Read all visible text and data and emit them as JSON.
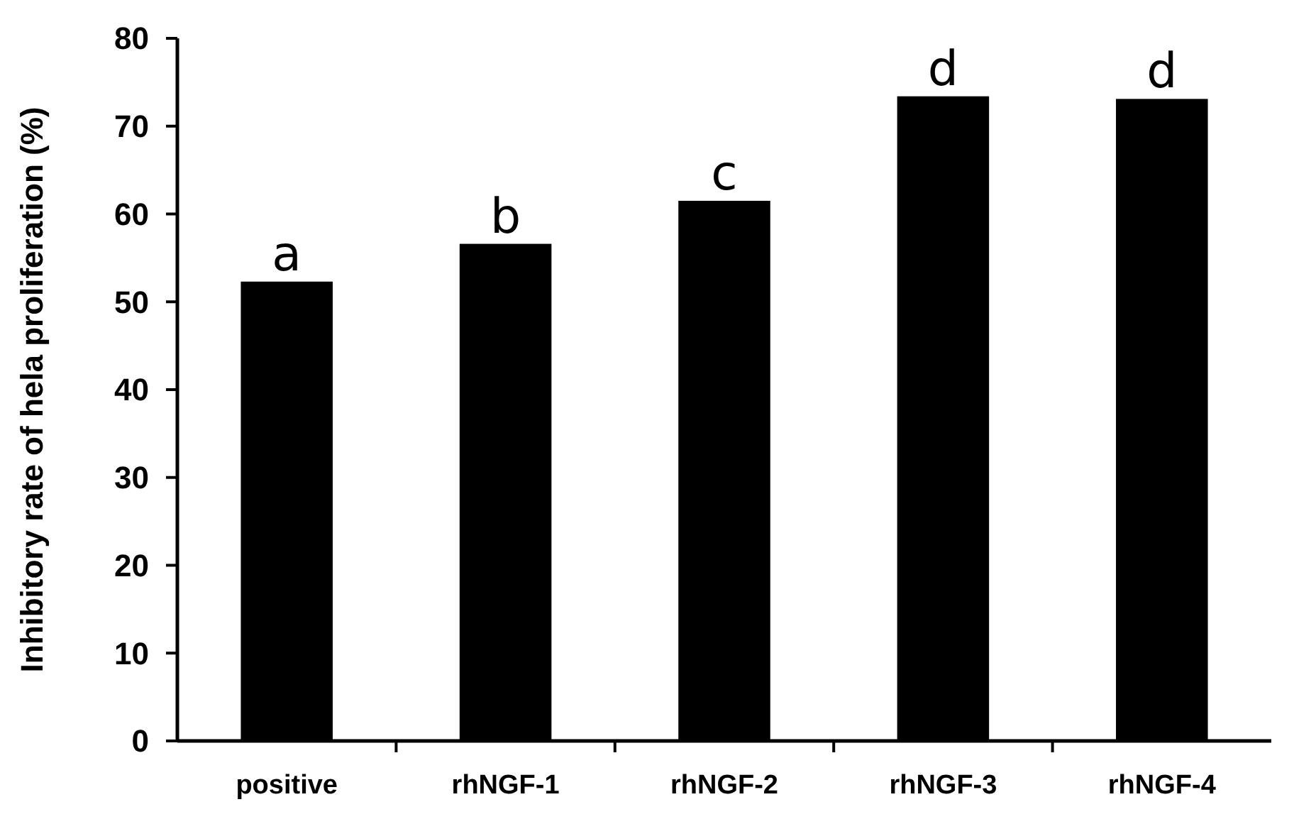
{
  "chart_data": {
    "type": "bar",
    "ylabel": "Inhibitory rate of hela proliferation (%)",
    "categories": [
      "positive",
      "rhNGF-1",
      "rhNGF-2",
      "rhNGF-3",
      "rhNGF-4"
    ],
    "values": [
      52.3,
      56.6,
      61.5,
      73.4,
      73.1
    ],
    "color": "#000000",
    "ylim": [
      0,
      80
    ],
    "yticks": [
      0,
      10,
      20,
      30,
      40,
      50,
      60,
      70,
      80
    ],
    "grid": false,
    "annotations": [
      {
        "text": "a",
        "x": "positive",
        "y": 52.3
      },
      {
        "text": "b",
        "x": "rhNGF-1",
        "y": 56.6
      },
      {
        "text": "c",
        "x": "rhNGF-2",
        "y": 61.5
      },
      {
        "text": "d",
        "x": "rhNGF-3",
        "y": 73.4
      },
      {
        "text": "d",
        "x": "rhNGF-4",
        "y": 73.1
      }
    ]
  }
}
